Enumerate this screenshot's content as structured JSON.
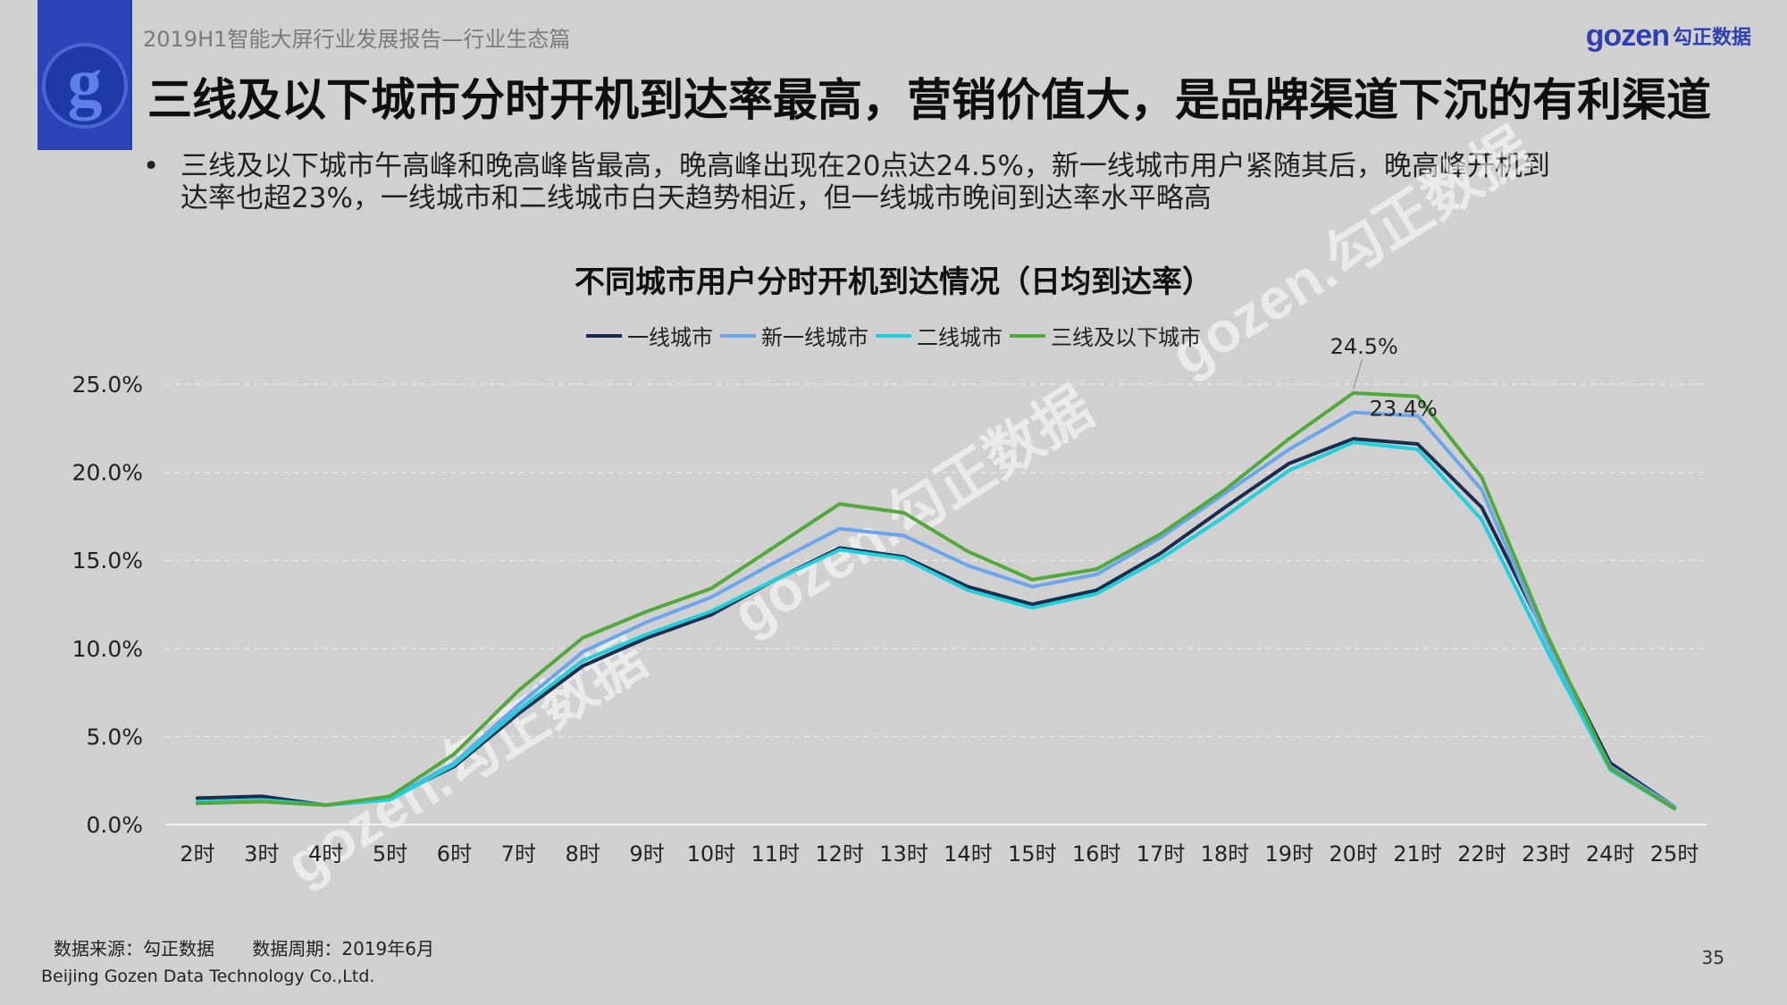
{
  "header": {
    "report_title": "2019H1智能大屏行业发展报告—行业生态篇",
    "brand_logo_text": "gozen",
    "brand_cn": "勾正数据",
    "logo_letter": "g"
  },
  "headline": "三线及以下城市分时开机到达率最高，营销价值大，是品牌渠道下沉的有利渠道",
  "bullet": {
    "symbol": "•",
    "line1": "三线及以下城市午高峰和晚高峰皆最高，晚高峰出现在20点达24.5%，新一线城市用户紧随其后，晚高峰开机到",
    "line2": "达率也超23%，一线城市和二线城市白天趋势相近，但一线城市晚间到达率水平略高"
  },
  "watermark_text": "gozen.勾正数据",
  "chart_data": {
    "type": "line",
    "title": "不同城市用户分时开机到达情况（日均到达率）",
    "categories": [
      "2时",
      "3时",
      "4时",
      "5时",
      "6时",
      "7时",
      "8时",
      "9时",
      "10时",
      "11时",
      "12时",
      "13时",
      "14时",
      "15时",
      "16时",
      "17时",
      "18时",
      "19时",
      "20时",
      "21时",
      "22时",
      "23时",
      "24时",
      "25时"
    ],
    "ylim": [
      0,
      25
    ],
    "yticks": [
      "0.0%",
      "5.0%",
      "10.0%",
      "15.0%",
      "20.0%",
      "25.0%"
    ],
    "series": [
      {
        "name": "一线城市",
        "color": "#1b2d4f",
        "values": [
          1.5,
          1.6,
          1.1,
          1.5,
          3.3,
          6.3,
          9.0,
          10.6,
          11.9,
          13.9,
          15.7,
          15.2,
          13.5,
          12.5,
          13.3,
          15.4,
          18.0,
          20.5,
          21.9,
          21.6,
          18.0,
          10.7,
          3.5,
          1.0
        ]
      },
      {
        "name": "新一线城市",
        "color": "#6ba6ec",
        "values": [
          1.3,
          1.4,
          1.1,
          1.5,
          3.5,
          6.8,
          9.8,
          11.5,
          12.9,
          14.9,
          16.8,
          16.4,
          14.7,
          13.5,
          14.2,
          16.3,
          18.8,
          21.3,
          23.4,
          23.2,
          19.0,
          10.5,
          3.3,
          1.0
        ]
      },
      {
        "name": "二线城市",
        "color": "#1fd0dc",
        "values": [
          1.3,
          1.4,
          1.1,
          1.4,
          3.4,
          6.5,
          9.3,
          10.8,
          12.1,
          13.9,
          15.6,
          15.1,
          13.3,
          12.3,
          13.1,
          15.1,
          17.5,
          20.1,
          21.7,
          21.3,
          17.3,
          10.0,
          3.1,
          0.9
        ]
      },
      {
        "name": "三线及以下城市",
        "color": "#52a83a",
        "values": [
          1.2,
          1.3,
          1.1,
          1.6,
          4.0,
          7.6,
          10.6,
          12.1,
          13.4,
          15.8,
          18.2,
          17.7,
          15.5,
          13.9,
          14.5,
          16.5,
          19.0,
          21.9,
          24.5,
          24.3,
          19.7,
          10.9,
          3.2,
          0.9
        ]
      }
    ],
    "annotations": [
      {
        "text": "24.5%",
        "series": "三线及以下城市",
        "category": "20时",
        "value": 24.5
      },
      {
        "text": "23.4%",
        "series": "新一线城市",
        "category": "20时",
        "value": 23.4
      }
    ],
    "legend": "top-center",
    "grid": true
  },
  "footer": {
    "source": "数据来源：勾正数据",
    "period": "数据周期：2019年6月",
    "company": "Beijing Gozen Data Technology Co.,Ltd.",
    "page": "35"
  }
}
